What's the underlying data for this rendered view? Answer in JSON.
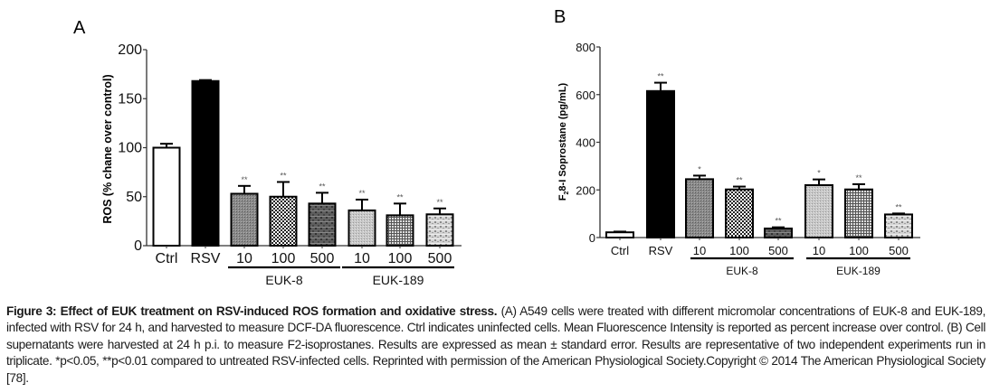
{
  "chart_data": [
    {
      "type": "bar",
      "panel": "A",
      "title": "",
      "xlabel": "",
      "ylabel": "ROS (% chane over control)",
      "ylim": [
        0,
        200
      ],
      "yticks": [
        0,
        50,
        100,
        150,
        200
      ],
      "categories": [
        "Ctrl",
        "RSV",
        "10",
        "100",
        "500",
        "10",
        "100",
        "500"
      ],
      "groups": [
        {
          "label": "EUK-8",
          "categories": [
            2,
            3,
            4
          ]
        },
        {
          "label": "EUK-189",
          "categories": [
            5,
            6,
            7
          ]
        }
      ],
      "values": [
        100,
        168,
        53,
        50,
        43,
        36,
        31,
        32
      ],
      "errors": [
        4,
        1,
        8,
        15,
        11,
        11,
        12,
        6
      ],
      "significance": [
        "",
        "",
        "**",
        "**",
        "**",
        "**",
        "**",
        "**"
      ],
      "patterns": [
        "white",
        "black",
        "fine-gray",
        "checker",
        "dark-dash",
        "light-gray",
        "grid",
        "light-dash"
      ],
      "grid": false
    },
    {
      "type": "bar",
      "panel": "B",
      "title": "",
      "xlabel": "",
      "ylabel": "F2 8-I Soprostane (pg/mL)",
      "ylabel_main": "F",
      "ylabel_sub": "2",
      "ylabel_rest": "8-I Soprostane (pg/mL)",
      "ylim": [
        0,
        800
      ],
      "yticks": [
        0,
        200,
        400,
        600,
        800
      ],
      "categories": [
        "Ctrl",
        "RSV",
        "10",
        "100",
        "500",
        "10",
        "100",
        "500"
      ],
      "groups": [
        {
          "label": "EUK-8",
          "categories": [
            2,
            3,
            4
          ]
        },
        {
          "label": "EUK-189",
          "categories": [
            5,
            6,
            7
          ]
        }
      ],
      "values": [
        22,
        615,
        245,
        202,
        38,
        220,
        202,
        97
      ],
      "errors": [
        3,
        35,
        15,
        12,
        5,
        24,
        22,
        4
      ],
      "significance": [
        "",
        "**",
        "*",
        "**",
        "**",
        "*",
        "**",
        "**"
      ],
      "patterns": [
        "white",
        "black",
        "fine-gray",
        "checker",
        "dark-dash",
        "light-gray",
        "grid",
        "light-dash"
      ],
      "grid": false
    }
  ],
  "caption": {
    "bold": "Figure 3: Effect of EUK treatment on RSV-induced ROS formation and oxidative stress.",
    "text": " (A) A549 cells were treated with different micromolar concentrations of EUK-8 and EUK-189, infected with RSV for 24 h, and harvested to measure DCF-DA fluorescence. Ctrl indicates uninfected cells. Mean Fluorescence Intensity is reported as percent increase over control. (B) Cell supernatants were harvested at 24 h p.i. to measure F2-isoprostanes. Results are expressed as mean ± standard error. Results are representative of two independent experiments run in triplicate. *p<0.05, **p<0.01 compared to untreated RSV-infected cells. Reprinted with permission of the American Physiological Society.Copyright © 2014 The American Physiological Society [78]."
  }
}
